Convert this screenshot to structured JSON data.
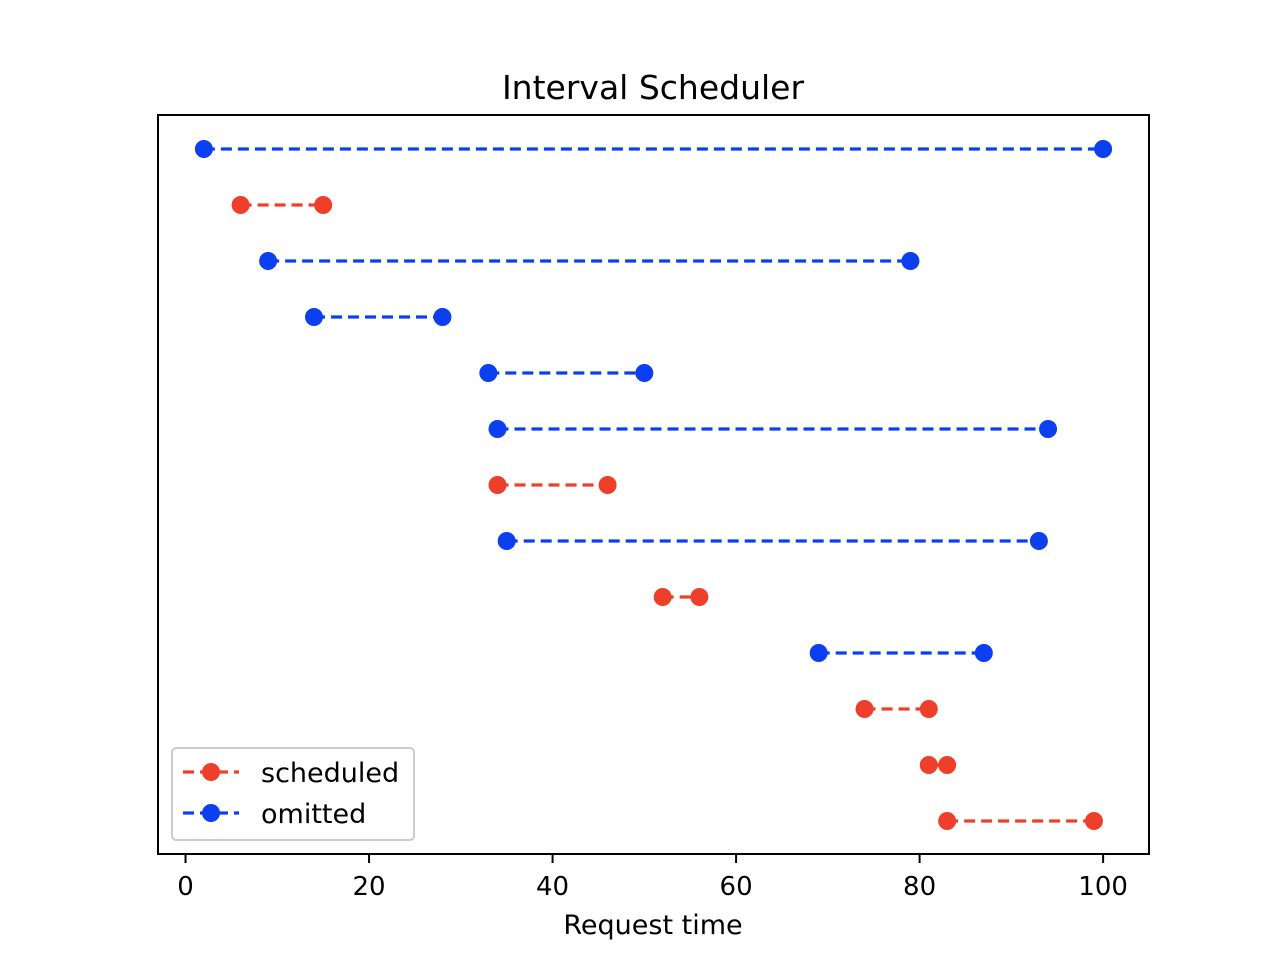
{
  "chart_data": {
    "type": "interval",
    "title": "Interval Scheduler",
    "xlabel": "Request time",
    "ylabel": "",
    "xlim": [
      -3,
      105
    ],
    "xticks": [
      0,
      20,
      40,
      60,
      80,
      100
    ],
    "yaxis_visible": false,
    "grid": false,
    "legend_position": "lower-left",
    "series": [
      {
        "name": "scheduled",
        "color": "#ee3f2a",
        "linestyle": "dashed",
        "marker": "circle"
      },
      {
        "name": "omitted",
        "color": "#0b3ff0",
        "linestyle": "dashed",
        "marker": "circle"
      }
    ],
    "intervals": [
      {
        "start": 2,
        "end": 100,
        "status": "omitted"
      },
      {
        "start": 6,
        "end": 15,
        "status": "scheduled"
      },
      {
        "start": 9,
        "end": 79,
        "status": "omitted"
      },
      {
        "start": 14,
        "end": 28,
        "status": "omitted"
      },
      {
        "start": 33,
        "end": 50,
        "status": "omitted"
      },
      {
        "start": 34,
        "end": 94,
        "status": "omitted"
      },
      {
        "start": 34,
        "end": 46,
        "status": "scheduled"
      },
      {
        "start": 35,
        "end": 93,
        "status": "omitted"
      },
      {
        "start": 52,
        "end": 56,
        "status": "scheduled"
      },
      {
        "start": 69,
        "end": 87,
        "status": "omitted"
      },
      {
        "start": 74,
        "end": 81,
        "status": "scheduled"
      },
      {
        "start": 81,
        "end": 83,
        "status": "scheduled"
      },
      {
        "start": 83,
        "end": 99,
        "status": "scheduled"
      }
    ]
  }
}
